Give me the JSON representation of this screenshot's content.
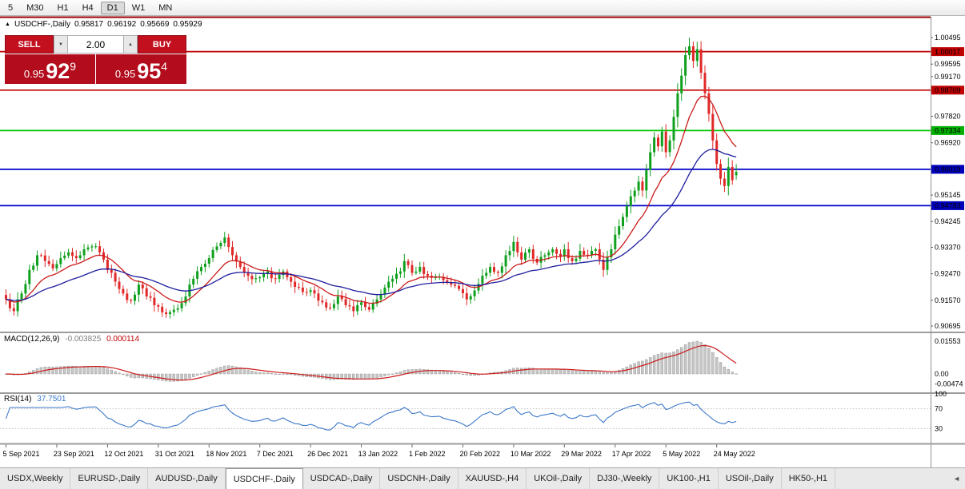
{
  "toolbar": {
    "periods": [
      "5",
      "M30",
      "H1",
      "H4",
      "D1",
      "W1",
      "MN"
    ],
    "active_period": "D1"
  },
  "chart_header": {
    "collapse_icon": "▲",
    "symbol": "USDCHF-,Daily",
    "open": "0.95817",
    "high": "0.96192",
    "low": "0.95669",
    "close": "0.95929"
  },
  "trade_panel": {
    "sell_label": "SELL",
    "buy_label": "BUY",
    "volume": "2.00",
    "spin_down_icon": "▼",
    "spin_up_icon": "▲",
    "sell_price": {
      "base": "0.95",
      "big": "92",
      "sup": "9"
    },
    "buy_price": {
      "base": "0.95",
      "big": "95",
      "sup": "4"
    }
  },
  "macd_panel": {
    "label": "MACD(12,26,9)",
    "value_main": "-0.003825",
    "value_signal": "0.000114",
    "scale": [
      {
        "text": "0.01553",
        "value": 0.01553
      },
      {
        "text": "0.00",
        "value": 0
      },
      {
        "text": "-0.00474",
        "value": -0.00474
      }
    ]
  },
  "rsi_panel": {
    "label": "RSI(14)",
    "value": "37.7501",
    "scale": [
      {
        "text": "100",
        "value": 100
      },
      {
        "text": "70",
        "value": 70
      },
      {
        "text": "30",
        "value": 30
      }
    ],
    "levels": [
      70,
      30
    ]
  },
  "price_scale": {
    "labels": [
      {
        "text": "1.00495",
        "price": 1.00495
      },
      {
        "text": "0.99595",
        "price": 0.99595
      },
      {
        "text": "0.99170",
        "price": 0.9917
      },
      {
        "text": "0.97820",
        "price": 0.9782
      },
      {
        "text": "0.96920",
        "price": 0.9692
      },
      {
        "text": "0.95145",
        "price": 0.95145
      },
      {
        "text": "0.94245",
        "price": 0.94245
      },
      {
        "text": "0.93370",
        "price": 0.9337
      },
      {
        "text": "0.92470",
        "price": 0.9247
      },
      {
        "text": "0.91570",
        "price": 0.9157
      },
      {
        "text": "0.90695",
        "price": 0.90695
      }
    ],
    "badges": [
      {
        "text": "1.00017",
        "price": 1.00017,
        "color": "#c00000"
      },
      {
        "text": "0.98709",
        "price": 0.98709,
        "color": "#c00000"
      },
      {
        "text": "0.97334",
        "price": 0.97334,
        "color": "#00b000"
      },
      {
        "text": "0.96019",
        "price": 0.96019,
        "color": "#0000bb"
      },
      {
        "text": "0.94783",
        "price": 0.94783,
        "color": "#0000bb"
      }
    ]
  },
  "x_axis": {
    "labels": [
      "5 Sep 2021",
      "23 Sep 2021",
      "12 Oct 2021",
      "31 Oct 2021",
      "18 Nov 2021",
      "7 Dec 2021",
      "26 Dec 2021",
      "13 Jan 2022",
      "1 Feb 2022",
      "20 Feb 2022",
      "10 Mar 2022",
      "29 Mar 2022",
      "17 Apr 2022",
      "5 May 2022",
      "24 May 2022"
    ],
    "label_step": 13
  },
  "tabs": {
    "items": [
      "USDX,Weekly",
      "EURUSD-,Daily",
      "AUDUSD-,Daily",
      "USDCHF-,Daily",
      "USDCAD-,Daily",
      "USDCNH-,Daily",
      "XAUUSD-,H4",
      "UKOil-,Daily",
      "DJ30-,Weekly",
      "UK100-,H1",
      "USOil-,Daily",
      "HK50-,H1"
    ],
    "active": "USDCHF-,Daily",
    "scroll_icon": "◄"
  },
  "chart_data": {
    "type": "candlestick",
    "symbol": "USDCHF",
    "timeframe": "Daily",
    "candle_count": 188,
    "y_range": [
      0.90695,
      1.00495
    ],
    "up_color": "#0fa01e",
    "down_color": "#e02828",
    "last_candle": {
      "open": 0.95817,
      "high": 0.96192,
      "low": 0.95669,
      "close": 0.95929
    },
    "close_waypoints": [
      [
        0,
        0.916
      ],
      [
        1,
        0.913
      ],
      [
        2,
        0.912
      ],
      [
        4,
        0.918
      ],
      [
        6,
        0.926
      ],
      [
        8,
        0.931
      ],
      [
        10,
        0.929
      ],
      [
        12,
        0.9265
      ],
      [
        14,
        0.93
      ],
      [
        16,
        0.932
      ],
      [
        18,
        0.93
      ],
      [
        20,
        0.933
      ],
      [
        22,
        0.934
      ],
      [
        24,
        0.932
      ],
      [
        26,
        0.926
      ],
      [
        28,
        0.922
      ],
      [
        30,
        0.918
      ],
      [
        32,
        0.9155
      ],
      [
        34,
        0.921
      ],
      [
        36,
        0.917
      ],
      [
        38,
        0.914
      ],
      [
        39,
        0.9135
      ],
      [
        41,
        0.911
      ],
      [
        43,
        0.9125
      ],
      [
        46,
        0.917
      ],
      [
        48,
        0.923
      ],
      [
        50,
        0.927
      ],
      [
        52,
        0.93
      ],
      [
        54,
        0.934
      ],
      [
        56,
        0.937
      ],
      [
        58,
        0.931
      ],
      [
        60,
        0.927
      ],
      [
        62,
        0.924
      ],
      [
        65,
        0.9235
      ],
      [
        67,
        0.9255
      ],
      [
        69,
        0.923
      ],
      [
        71,
        0.9255
      ],
      [
        73,
        0.922
      ],
      [
        75,
        0.92
      ],
      [
        77,
        0.9185
      ],
      [
        79,
        0.918
      ],
      [
        81,
        0.915
      ],
      [
        83,
        0.913
      ],
      [
        85,
        0.917
      ],
      [
        87,
        0.914
      ],
      [
        89,
        0.912
      ],
      [
        91,
        0.915
      ],
      [
        93,
        0.9125
      ],
      [
        95,
        0.916
      ],
      [
        97,
        0.92
      ],
      [
        99,
        0.923
      ],
      [
        101,
        0.9255
      ],
      [
        102,
        0.929
      ],
      [
        104,
        0.925
      ],
      [
        106,
        0.927
      ],
      [
        108,
        0.924
      ],
      [
        110,
        0.9235
      ],
      [
        112,
        0.9225
      ],
      [
        114,
        0.921
      ],
      [
        116,
        0.9195
      ],
      [
        118,
        0.916
      ],
      [
        120,
        0.919
      ],
      [
        122,
        0.924
      ],
      [
        124,
        0.927
      ],
      [
        126,
        0.925
      ],
      [
        128,
        0.931
      ],
      [
        130,
        0.9355
      ],
      [
        132,
        0.9295
      ],
      [
        134,
        0.933
      ],
      [
        136,
        0.9285
      ],
      [
        138,
        0.931
      ],
      [
        140,
        0.933
      ],
      [
        142,
        0.9305
      ],
      [
        143,
        0.933
      ],
      [
        145,
        0.929
      ],
      [
        147,
        0.9325
      ],
      [
        149,
        0.931
      ],
      [
        151,
        0.933
      ],
      [
        153,
        0.926
      ],
      [
        155,
        0.933
      ],
      [
        156,
        0.938
      ],
      [
        158,
        0.944
      ],
      [
        160,
        0.951
      ],
      [
        162,
        0.956
      ],
      [
        163,
        0.953
      ],
      [
        164,
        0.96
      ],
      [
        165,
        0.966
      ],
      [
        166,
        0.971
      ],
      [
        167,
        0.968
      ],
      [
        168,
        0.973
      ],
      [
        169,
        0.966
      ],
      [
        170,
        0.97
      ],
      [
        171,
        0.978
      ],
      [
        172,
        0.986
      ],
      [
        173,
        0.992
      ],
      [
        174,
        0.999
      ],
      [
        175,
        1.002
      ],
      [
        176,
        0.997
      ],
      [
        177,
        1.001
      ],
      [
        178,
        0.993
      ],
      [
        179,
        0.986
      ],
      [
        180,
        0.979
      ],
      [
        181,
        0.97
      ],
      [
        182,
        0.962
      ],
      [
        183,
        0.957
      ],
      [
        184,
        0.9545
      ],
      [
        185,
        0.961
      ],
      [
        186,
        0.9565
      ],
      [
        187,
        0.95929
      ]
    ],
    "overlays": [
      {
        "name": "ma-fast",
        "method": "ema",
        "period": 13,
        "color": "#cc1a1a"
      },
      {
        "name": "ma-slow",
        "method": "ema",
        "period": 34,
        "color": "#1e1e9e"
      }
    ],
    "h_lines": [
      {
        "price": 1.00017,
        "color": "#c00000"
      },
      {
        "price": 0.98709,
        "color": "#c00000"
      },
      {
        "price": 0.97334,
        "color": "#00c800"
      },
      {
        "price": 0.96019,
        "color": "#0000c8"
      },
      {
        "price": 0.94783,
        "color": "#0000c8"
      }
    ],
    "macd": {
      "fast": 12,
      "slow": 26,
      "signal": 9,
      "histogram_color": "#c6c6c6",
      "signal_color": "#cc1a1a",
      "display_max": 0.01553
    },
    "rsi": {
      "period": 14,
      "color": "#3c78c8"
    }
  }
}
